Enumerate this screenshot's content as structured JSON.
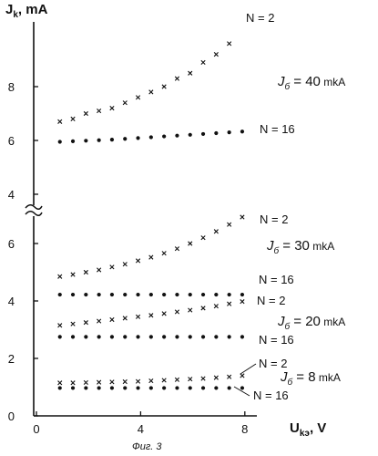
{
  "chart_data": {
    "type": "scatter",
    "title": "",
    "caption": "Фиг. 3",
    "ylabel_main": "J",
    "ylabel_sub": "k",
    "ylabel_unit": ", mA",
    "xlabel_main": "U",
    "xlabel_sub": "kэ",
    "xlabel_unit": ", V",
    "xlim": [
      0,
      9
    ],
    "x_ticks": [
      0,
      4,
      8
    ],
    "lower_axis": {
      "ylim": [
        0,
        7.6
      ],
      "ticks": [
        0,
        2,
        4,
        6
      ]
    },
    "upper_axis": {
      "ylim": [
        3.5,
        10.5
      ],
      "ticks": [
        4,
        6,
        8
      ]
    },
    "axis_break": true,
    "groups": [
      {
        "label_main": "J",
        "label_sub": "б",
        "label_value": " = 40",
        "label_unit": " mkA",
        "axis": "upper",
        "series": [
          {
            "name": "N = 2",
            "marker": "x",
            "x": [
              0.9,
              1.4,
              1.9,
              2.4,
              2.9,
              3.4,
              3.9,
              4.4,
              4.9,
              5.4,
              5.9,
              6.4,
              6.9,
              7.4
            ],
            "y": [
              6.7,
              6.8,
              7.0,
              7.1,
              7.2,
              7.4,
              7.6,
              7.8,
              8.0,
              8.3,
              8.5,
              8.9,
              9.2,
              9.6
            ]
          },
          {
            "name": "N = 16",
            "marker": "dot",
            "x": [
              0.9,
              1.4,
              1.9,
              2.4,
              2.9,
              3.4,
              3.9,
              4.4,
              4.9,
              5.4,
              5.9,
              6.4,
              6.9,
              7.4,
              7.9
            ],
            "y": [
              5.95,
              5.97,
              5.99,
              6.01,
              6.03,
              6.06,
              6.09,
              6.12,
              6.15,
              6.18,
              6.21,
              6.24,
              6.27,
              6.3,
              6.33
            ]
          }
        ]
      },
      {
        "label_main": "J",
        "label_sub": "б",
        "label_value": " = 30",
        "label_unit": " mkA",
        "axis": "lower",
        "series": [
          {
            "name": "N = 2",
            "marker": "x",
            "x": [
              0.9,
              1.4,
              1.9,
              2.4,
              2.9,
              3.4,
              3.9,
              4.4,
              4.9,
              5.4,
              5.9,
              6.4,
              6.9,
              7.4,
              7.9
            ],
            "y": [
              4.85,
              4.92,
              5.0,
              5.08,
              5.18,
              5.28,
              5.4,
              5.52,
              5.66,
              5.82,
              6.0,
              6.2,
              6.42,
              6.66,
              6.92
            ]
          },
          {
            "name": "N = 16",
            "marker": "dot",
            "x": [
              0.9,
              1.4,
              1.9,
              2.4,
              2.9,
              3.4,
              3.9,
              4.4,
              4.9,
              5.4,
              5.9,
              6.4,
              6.9,
              7.4,
              7.9
            ],
            "y": [
              4.22,
              4.22,
              4.22,
              4.22,
              4.22,
              4.22,
              4.22,
              4.22,
              4.22,
              4.22,
              4.22,
              4.22,
              4.22,
              4.22,
              4.22
            ]
          }
        ]
      },
      {
        "label_main": "J",
        "label_sub": "б",
        "label_value": " = 20",
        "label_unit": " mkA",
        "axis": "lower",
        "series": [
          {
            "name": "N = 2",
            "marker": "x",
            "x": [
              0.9,
              1.4,
              1.9,
              2.4,
              2.9,
              3.4,
              3.9,
              4.4,
              4.9,
              5.4,
              5.9,
              6.4,
              6.9,
              7.4,
              7.9
            ],
            "y": [
              3.15,
              3.2,
              3.25,
              3.3,
              3.35,
              3.4,
              3.45,
              3.5,
              3.56,
              3.62,
              3.68,
              3.75,
              3.82,
              3.9,
              3.98
            ]
          },
          {
            "name": "N = 16",
            "marker": "dot",
            "x": [
              0.9,
              1.4,
              1.9,
              2.4,
              2.9,
              3.4,
              3.9,
              4.4,
              4.9,
              5.4,
              5.9,
              6.4,
              6.9,
              7.4,
              7.9
            ],
            "y": [
              2.75,
              2.75,
              2.75,
              2.75,
              2.75,
              2.75,
              2.75,
              2.75,
              2.75,
              2.75,
              2.75,
              2.75,
              2.75,
              2.75,
              2.75
            ]
          }
        ]
      },
      {
        "label_main": "J",
        "label_sub": "б",
        "label_value": " = 8",
        "label_unit": " mkA",
        "axis": "lower",
        "series": [
          {
            "name": "N = 2",
            "marker": "x",
            "x": [
              0.9,
              1.4,
              1.9,
              2.4,
              2.9,
              3.4,
              3.9,
              4.4,
              4.9,
              5.4,
              5.9,
              6.4,
              6.9,
              7.4,
              7.9
            ],
            "y": [
              1.15,
              1.15,
              1.16,
              1.17,
              1.18,
              1.19,
              1.2,
              1.22,
              1.24,
              1.26,
              1.28,
              1.3,
              1.33,
              1.36,
              1.4
            ]
          },
          {
            "name": "N = 16",
            "marker": "dot",
            "x": [
              0.9,
              1.4,
              1.9,
              2.4,
              2.9,
              3.4,
              3.9,
              4.4,
              4.9,
              5.4,
              5.9,
              6.4,
              6.9,
              7.4,
              7.9
            ],
            "y": [
              0.97,
              0.97,
              0.97,
              0.97,
              0.97,
              0.97,
              0.97,
              0.97,
              0.97,
              0.97,
              0.97,
              0.97,
              0.97,
              0.97,
              0.97
            ]
          }
        ]
      }
    ]
  }
}
